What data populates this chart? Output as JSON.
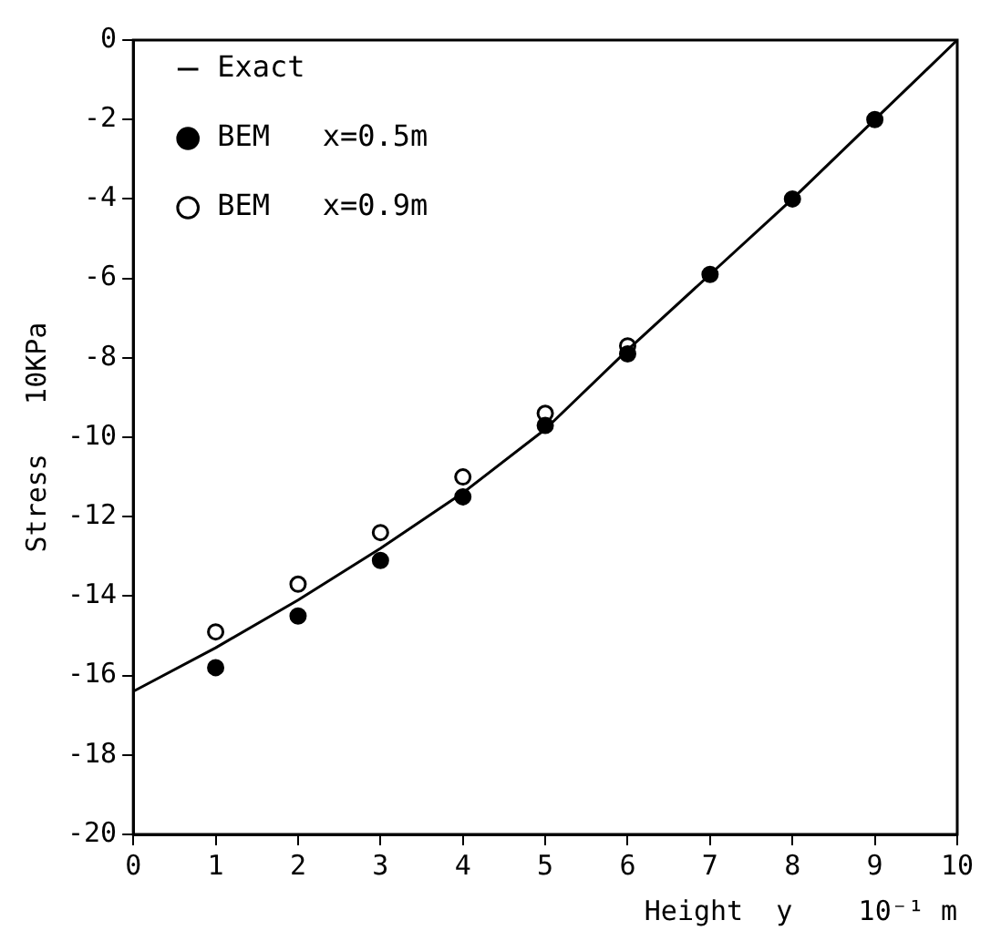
{
  "chart_data": {
    "type": "scatter",
    "xlabel": "Height  y    10⁻¹ m",
    "ylabel": "Stress   10KPa",
    "xlim": [
      0,
      10
    ],
    "xticks": [
      0,
      1,
      2,
      3,
      4,
      5,
      6,
      7,
      8,
      9,
      10
    ],
    "ylim": [
      -20,
      0
    ],
    "yticks": [
      -20,
      -18,
      -16,
      -14,
      -12,
      -10,
      -8,
      -6,
      -4,
      -2,
      0
    ],
    "grid": false,
    "legend": "top left",
    "series": [
      {
        "name": "Exact",
        "type": "line",
        "marker": "none",
        "line_style": "solid",
        "color": "#000000",
        "x": [
          0,
          1,
          2,
          3,
          4,
          5,
          6,
          7,
          8,
          9,
          10
        ],
        "values": [
          -16.4,
          -15.3,
          -14.1,
          -12.8,
          -11.4,
          -9.8,
          -7.8,
          -5.9,
          -4.0,
          -2.0,
          0
        ]
      },
      {
        "name": "BEM   x=0.5m",
        "type": "scatter",
        "marker": "circle",
        "color": "#000000",
        "x": [
          1,
          2,
          3,
          4,
          5,
          6,
          7,
          8,
          9
        ],
        "values": [
          -15.8,
          -14.5,
          -13.1,
          -11.5,
          -9.7,
          -7.9,
          -5.9,
          -4.0,
          -2.0
        ]
      },
      {
        "name": "BEM   x=0.9m",
        "type": "scatter",
        "marker": "circle",
        "color": "#000000",
        "x": [
          1,
          2,
          3,
          4,
          5,
          6
        ],
        "values": [
          -14.9,
          -13.7,
          -12.4,
          -11.0,
          -9.4,
          -7.7
        ]
      }
    ]
  }
}
